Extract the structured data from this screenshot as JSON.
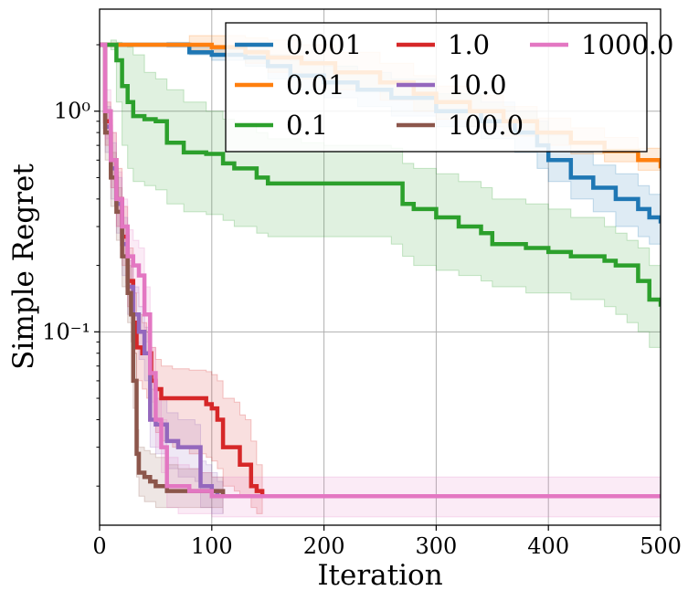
{
  "chart_data": {
    "type": "line",
    "title": "",
    "xlabel": "Iteration",
    "ylabel": "Simple Regret",
    "xlim": [
      0,
      500
    ],
    "ylim": [
      0.0133,
      2.9
    ],
    "yscale": "log",
    "grid": true,
    "legend_position": "top-right",
    "legend_columns": 3,
    "x_ticks": [
      0,
      100,
      200,
      300,
      400,
      500
    ],
    "x_tick_labels": [
      "0",
      "100",
      "200",
      "300",
      "400",
      "500"
    ],
    "y_ticks": [
      1.0,
      0.1
    ],
    "y_tick_labels": [
      "10⁰",
      "10⁻¹"
    ],
    "series": [
      {
        "name": "0.001",
        "color": "#1f77b4",
        "x": [
          0,
          60,
          80,
          100,
          130,
          150,
          170,
          200,
          230,
          260,
          300,
          340,
          370,
          390,
          400,
          420,
          440,
          460,
          480,
          490,
          500
        ],
        "y": [
          2.0,
          2.0,
          1.85,
          1.8,
          1.75,
          1.6,
          1.45,
          1.35,
          1.25,
          1.15,
          1.0,
          0.9,
          0.8,
          0.7,
          0.6,
          0.5,
          0.45,
          0.4,
          0.36,
          0.33,
          0.31
        ],
        "lo": [
          2.0,
          1.95,
          1.8,
          1.7,
          1.6,
          1.4,
          1.25,
          1.15,
          1.05,
          0.95,
          0.85,
          0.75,
          0.65,
          0.55,
          0.48,
          0.4,
          0.35,
          0.3,
          0.27,
          0.25,
          0.23
        ],
        "hi": [
          2.0,
          2.05,
          1.95,
          1.9,
          1.9,
          1.8,
          1.7,
          1.6,
          1.5,
          1.4,
          1.2,
          1.1,
          1.0,
          0.9,
          0.78,
          0.65,
          0.57,
          0.52,
          0.46,
          0.42,
          0.4
        ]
      },
      {
        "name": "0.01",
        "color": "#ff7f0e",
        "x": [
          0,
          80,
          100,
          130,
          150,
          180,
          210,
          250,
          280,
          300,
          330,
          360,
          390,
          420,
          450,
          480,
          500
        ],
        "y": [
          2.0,
          2.0,
          1.95,
          1.85,
          1.75,
          1.65,
          1.5,
          1.35,
          1.2,
          1.1,
          1.0,
          0.9,
          0.8,
          0.72,
          0.66,
          0.6,
          0.55
        ],
        "lo": [
          2.0,
          1.9,
          1.8,
          1.65,
          1.5,
          1.4,
          1.25,
          1.12,
          1.0,
          0.92,
          0.85,
          0.77,
          0.7,
          0.64,
          0.59,
          0.54,
          0.5
        ],
        "hi": [
          2.0,
          2.2,
          2.2,
          2.15,
          2.1,
          2.0,
          1.85,
          1.65,
          1.45,
          1.3,
          1.18,
          1.05,
          0.93,
          0.84,
          0.76,
          0.68,
          0.62
        ]
      },
      {
        "name": "0.1",
        "color": "#2ca02c",
        "x": [
          0,
          10,
          15,
          20,
          25,
          30,
          40,
          50,
          60,
          75,
          95,
          110,
          120,
          140,
          150,
          180,
          200,
          260,
          270,
          280,
          300,
          320,
          340,
          350,
          380,
          400,
          420,
          450,
          460,
          470,
          480,
          490,
          500
        ],
        "y": [
          2.0,
          2.0,
          1.7,
          1.3,
          1.1,
          0.95,
          0.92,
          0.9,
          0.72,
          0.65,
          0.64,
          0.58,
          0.55,
          0.5,
          0.47,
          0.47,
          0.47,
          0.47,
          0.38,
          0.36,
          0.33,
          0.3,
          0.28,
          0.25,
          0.24,
          0.23,
          0.22,
          0.21,
          0.2,
          0.2,
          0.17,
          0.14,
          0.13
        ],
        "lo": [
          2.0,
          1.9,
          1.1,
          0.7,
          0.55,
          0.48,
          0.46,
          0.44,
          0.38,
          0.35,
          0.34,
          0.32,
          0.3,
          0.28,
          0.27,
          0.27,
          0.27,
          0.25,
          0.22,
          0.2,
          0.19,
          0.18,
          0.17,
          0.16,
          0.15,
          0.15,
          0.14,
          0.13,
          0.12,
          0.11,
          0.1,
          0.085,
          0.078
        ],
        "hi": [
          2.0,
          2.1,
          2.05,
          2.0,
          1.95,
          1.8,
          1.5,
          1.4,
          1.25,
          1.1,
          1.0,
          0.92,
          0.88,
          0.8,
          0.75,
          0.72,
          0.7,
          0.68,
          0.58,
          0.55,
          0.52,
          0.48,
          0.45,
          0.4,
          0.38,
          0.36,
          0.33,
          0.3,
          0.28,
          0.26,
          0.24,
          0.2,
          0.19
        ]
      },
      {
        "name": "1.0",
        "color": "#d62728",
        "x": [
          0,
          5,
          10,
          15,
          20,
          25,
          30,
          33,
          38,
          42,
          46,
          50,
          55,
          65,
          80,
          95,
          100,
          105,
          110,
          120,
          125,
          130,
          135,
          140,
          145
        ],
        "y": [
          2.0,
          0.9,
          0.6,
          0.4,
          0.27,
          0.17,
          0.11,
          0.085,
          0.08,
          0.08,
          0.06,
          0.055,
          0.05,
          0.05,
          0.05,
          0.047,
          0.045,
          0.04,
          0.03,
          0.03,
          0.025,
          0.025,
          0.02,
          0.019,
          0.018
        ],
        "lo": [
          2.0,
          0.7,
          0.45,
          0.3,
          0.2,
          0.13,
          0.08,
          0.06,
          0.055,
          0.05,
          0.04,
          0.035,
          0.032,
          0.03,
          0.028,
          0.027,
          0.026,
          0.024,
          0.02,
          0.019,
          0.018,
          0.018,
          0.016,
          0.015,
          0.015
        ],
        "hi": [
          2.0,
          1.1,
          0.8,
          0.55,
          0.37,
          0.24,
          0.15,
          0.12,
          0.11,
          0.1,
          0.085,
          0.075,
          0.07,
          0.068,
          0.067,
          0.066,
          0.064,
          0.06,
          0.05,
          0.048,
          0.042,
          0.04,
          0.032,
          0.025,
          0.022
        ]
      },
      {
        "name": "10.0",
        "color": "#9467bd",
        "x": [
          0,
          5,
          10,
          15,
          20,
          25,
          30,
          35,
          40,
          45,
          50,
          60,
          70,
          85,
          90,
          95,
          100,
          105,
          110
        ],
        "y": [
          2.0,
          0.85,
          0.55,
          0.38,
          0.25,
          0.16,
          0.12,
          0.1,
          0.08,
          0.04,
          0.038,
          0.032,
          0.03,
          0.03,
          0.02,
          0.02,
          0.019,
          0.018,
          0.018
        ],
        "lo": [
          2.0,
          0.65,
          0.4,
          0.28,
          0.18,
          0.12,
          0.09,
          0.075,
          0.06,
          0.03,
          0.028,
          0.024,
          0.022,
          0.021,
          0.016,
          0.016,
          0.015,
          0.015,
          0.015
        ],
        "hi": [
          2.0,
          1.05,
          0.72,
          0.5,
          0.33,
          0.21,
          0.16,
          0.13,
          0.105,
          0.055,
          0.05,
          0.043,
          0.04,
          0.038,
          0.026,
          0.025,
          0.023,
          0.021,
          0.02
        ]
      },
      {
        "name": "100.0",
        "color": "#8c564b",
        "x": [
          0,
          5,
          10,
          15,
          20,
          25,
          28,
          30,
          33,
          35,
          40,
          45,
          50,
          60,
          70,
          80,
          90,
          100,
          110
        ],
        "y": [
          2.0,
          0.8,
          0.5,
          0.35,
          0.22,
          0.15,
          0.12,
          0.06,
          0.028,
          0.023,
          0.022,
          0.021,
          0.02,
          0.019,
          0.019,
          0.019,
          0.019,
          0.019,
          0.018
        ],
        "lo": [
          2.0,
          0.6,
          0.37,
          0.26,
          0.16,
          0.11,
          0.09,
          0.045,
          0.022,
          0.018,
          0.017,
          0.017,
          0.016,
          0.016,
          0.016,
          0.016,
          0.016,
          0.016,
          0.015
        ],
        "hi": [
          2.0,
          1.0,
          0.65,
          0.45,
          0.3,
          0.2,
          0.16,
          0.08,
          0.036,
          0.03,
          0.029,
          0.028,
          0.027,
          0.025,
          0.024,
          0.024,
          0.023,
          0.022,
          0.021
        ]
      },
      {
        "name": "1000.0",
        "color": "#e377c2",
        "x": [
          0,
          5,
          10,
          15,
          20,
          25,
          30,
          35,
          40,
          45,
          50,
          55,
          60,
          70,
          80,
          90,
          100,
          500
        ],
        "y": [
          2.0,
          1.0,
          0.6,
          0.4,
          0.3,
          0.22,
          0.2,
          0.18,
          0.12,
          0.065,
          0.04,
          0.03,
          0.02,
          0.02,
          0.019,
          0.019,
          0.018,
          0.018
        ],
        "lo": [
          2.0,
          0.75,
          0.45,
          0.3,
          0.22,
          0.16,
          0.15,
          0.13,
          0.09,
          0.048,
          0.03,
          0.023,
          0.016,
          0.015,
          0.015,
          0.015,
          0.0145,
          0.0145
        ],
        "hi": [
          2.0,
          1.25,
          0.8,
          0.53,
          0.4,
          0.29,
          0.26,
          0.24,
          0.16,
          0.085,
          0.054,
          0.04,
          0.027,
          0.025,
          0.024,
          0.023,
          0.022,
          0.022
        ]
      }
    ]
  }
}
